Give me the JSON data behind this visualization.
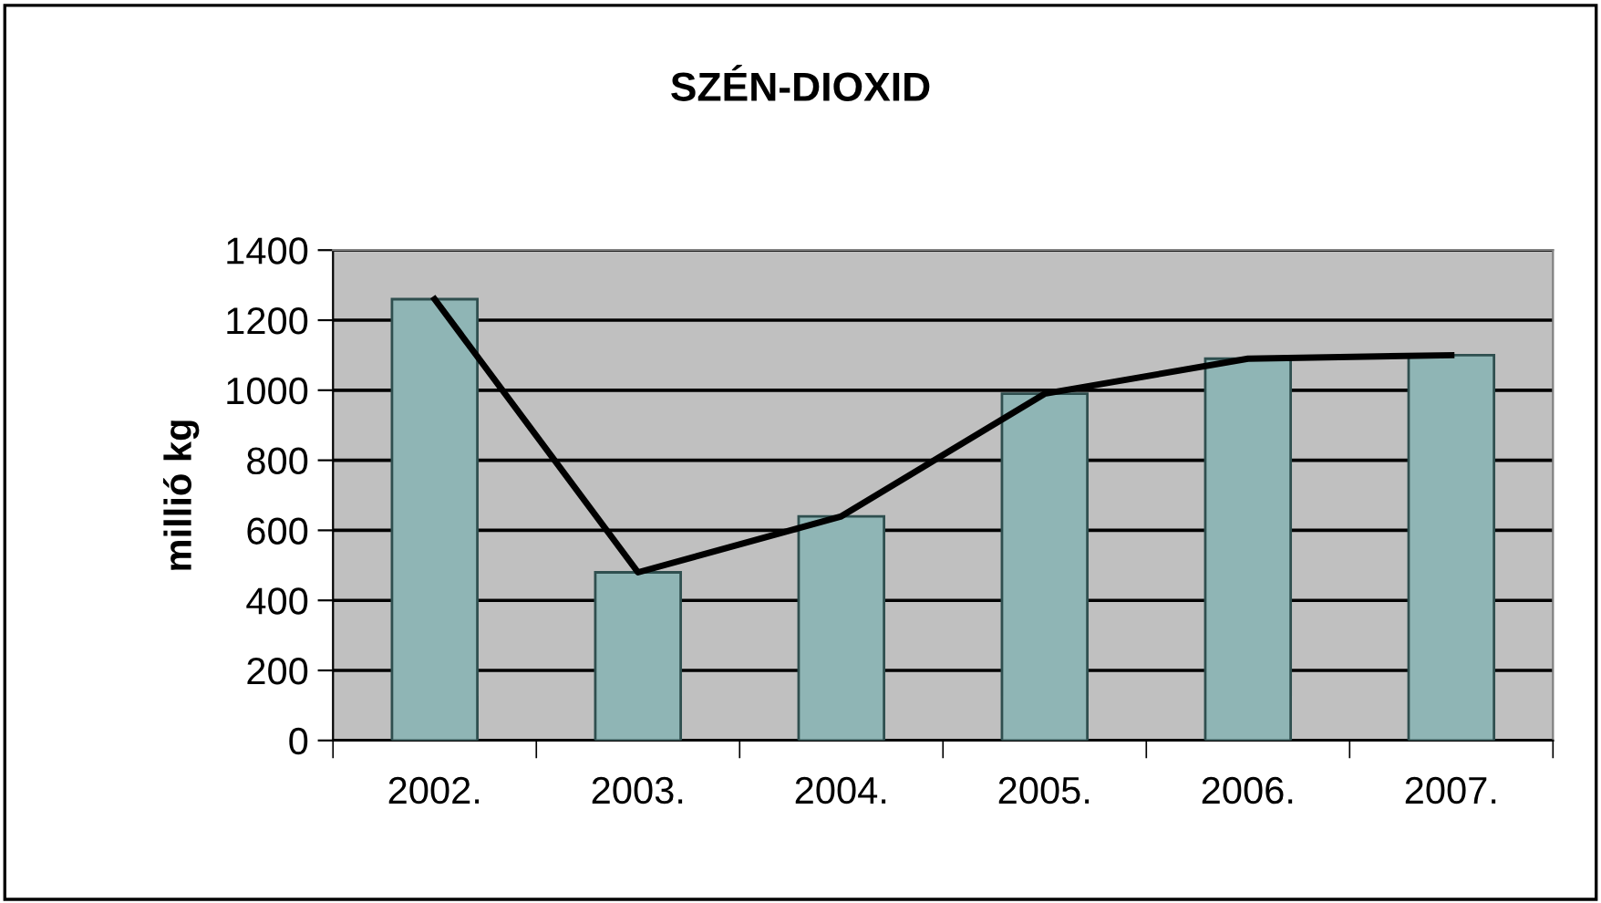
{
  "chart_data": {
    "type": "bar",
    "title": "SZÉN-DIOXID",
    "ylabel": "millió kg",
    "categories": [
      "2002.",
      "2003.",
      "2004.",
      "2005.",
      "2006.",
      "2007."
    ],
    "series": [
      {
        "type": "bar",
        "color": "#8fb5b5",
        "values": [
          1260,
          480,
          640,
          990,
          1090,
          1100
        ]
      },
      {
        "type": "line",
        "color": "#000000",
        "values": [
          1260,
          480,
          640,
          990,
          1090,
          1100
        ]
      }
    ],
    "ylim": [
      0,
      1400
    ],
    "yticks": [
      0,
      200,
      400,
      600,
      800,
      1000,
      1200,
      1400
    ],
    "grid": "y",
    "legend": false
  }
}
